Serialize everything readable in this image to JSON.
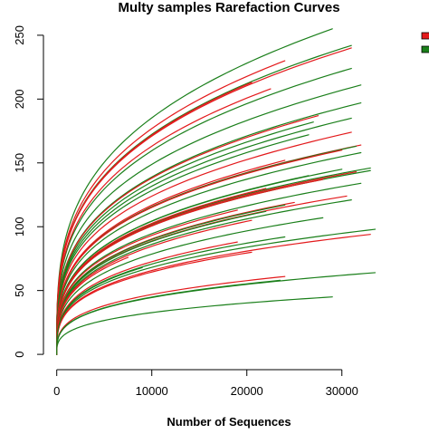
{
  "colors": {
    "red": "#e31a1c",
    "green": "#1a7f1a",
    "axis": "#000000",
    "background": "#ffffff"
  },
  "chart_data": {
    "type": "line",
    "title": "Multy samples Rarefaction Curves",
    "xlabel": "Number of Sequences",
    "ylabel": "",
    "xlim": [
      -1400,
      36500
    ],
    "ylim": [
      -12,
      262
    ],
    "x_ticks": [
      0,
      10000,
      20000,
      30000
    ],
    "x_tick_labels": [
      "0",
      "10000",
      "20000",
      "30000"
    ],
    "y_ticks": [
      0,
      50,
      100,
      150,
      200,
      250
    ],
    "y_tick_labels": [
      "0",
      "50",
      "100",
      "150",
      "200",
      "250"
    ],
    "grid": false,
    "legend": {
      "placement": "right",
      "entries": [
        {
          "color": "#e31a1c"
        },
        {
          "color": "#1a7f1a"
        }
      ]
    },
    "series": [
      {
        "color": "green",
        "x_end": 29000,
        "y_end": 255
      },
      {
        "color": "green",
        "x_end": 31000,
        "y_end": 242
      },
      {
        "color": "red",
        "x_end": 31000,
        "y_end": 240
      },
      {
        "color": "red",
        "x_end": 24000,
        "y_end": 230
      },
      {
        "color": "green",
        "x_end": 31000,
        "y_end": 224
      },
      {
        "color": "red",
        "x_end": 20500,
        "y_end": 213
      },
      {
        "color": "green",
        "x_end": 32000,
        "y_end": 211
      },
      {
        "color": "red",
        "x_end": 22500,
        "y_end": 208
      },
      {
        "color": "green",
        "x_end": 32000,
        "y_end": 197
      },
      {
        "color": "red",
        "x_end": 27500,
        "y_end": 187
      },
      {
        "color": "green",
        "x_end": 31000,
        "y_end": 185
      },
      {
        "color": "green",
        "x_end": 27000,
        "y_end": 182
      },
      {
        "color": "red",
        "x_end": 31000,
        "y_end": 174
      },
      {
        "color": "green",
        "x_end": 26500,
        "y_end": 172
      },
      {
        "color": "red",
        "x_end": 32000,
        "y_end": 164
      },
      {
        "color": "green",
        "x_end": 31500,
        "y_end": 163
      },
      {
        "color": "red",
        "x_end": 30000,
        "y_end": 160
      },
      {
        "color": "green",
        "x_end": 32000,
        "y_end": 158
      },
      {
        "color": "red",
        "x_end": 24000,
        "y_end": 152
      },
      {
        "color": "green",
        "x_end": 33000,
        "y_end": 146
      },
      {
        "color": "green",
        "x_end": 30000,
        "y_end": 145
      },
      {
        "color": "red",
        "x_end": 31500,
        "y_end": 143
      },
      {
        "color": "green",
        "x_end": 33000,
        "y_end": 144
      },
      {
        "color": "green",
        "x_end": 26500,
        "y_end": 140
      },
      {
        "color": "red",
        "x_end": 28000,
        "y_end": 137
      },
      {
        "color": "green",
        "x_end": 32000,
        "y_end": 134
      },
      {
        "color": "red",
        "x_end": 22000,
        "y_end": 130
      },
      {
        "color": "red",
        "x_end": 30500,
        "y_end": 124
      },
      {
        "color": "green",
        "x_end": 31000,
        "y_end": 121
      },
      {
        "color": "red",
        "x_end": 25000,
        "y_end": 119
      },
      {
        "color": "green",
        "x_end": 24000,
        "y_end": 117
      },
      {
        "color": "red",
        "x_end": 19000,
        "y_end": 113
      },
      {
        "color": "green",
        "x_end": 22000,
        "y_end": 112
      },
      {
        "color": "green",
        "x_end": 28000,
        "y_end": 107
      },
      {
        "color": "red",
        "x_end": 20500,
        "y_end": 105
      },
      {
        "color": "green",
        "x_end": 33500,
        "y_end": 98
      },
      {
        "color": "red",
        "x_end": 33000,
        "y_end": 94
      },
      {
        "color": "green",
        "x_end": 24000,
        "y_end": 92
      },
      {
        "color": "red",
        "x_end": 19000,
        "y_end": 88
      },
      {
        "color": "red",
        "x_end": 20500,
        "y_end": 80
      },
      {
        "color": "green",
        "x_end": 33500,
        "y_end": 64
      },
      {
        "color": "red",
        "x_end": 24000,
        "y_end": 61
      },
      {
        "color": "green",
        "x_end": 23500,
        "y_end": 58
      },
      {
        "color": "green",
        "x_end": 29000,
        "y_end": 45
      },
      {
        "color": "red",
        "x_end": 7500,
        "y_end": 76
      },
      {
        "color": "green",
        "x_end": 9000,
        "y_end": 68
      }
    ]
  }
}
